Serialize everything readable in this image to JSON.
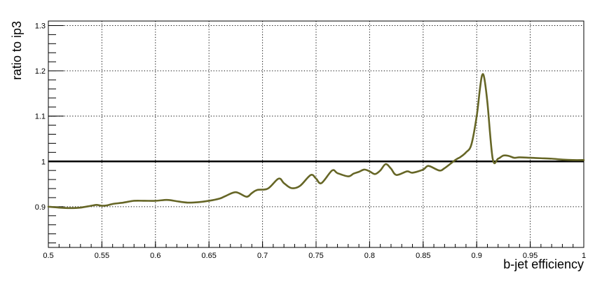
{
  "chart_data": {
    "type": "line",
    "xlabel": "b-jet efficiency",
    "ylabel": "ratio to ip3",
    "xlim": [
      0.5,
      1.0
    ],
    "ylim": [
      0.81,
      1.31
    ],
    "xticks": [
      0.5,
      0.55,
      0.6,
      0.65,
      0.7,
      0.75,
      0.8,
      0.85,
      0.9,
      0.95,
      1.0
    ],
    "xtick_labels": [
      "0.5",
      "0.55",
      "0.6",
      "0.65",
      "0.7",
      "0.75",
      "0.8",
      "0.85",
      "0.9",
      "0.95",
      "1"
    ],
    "yticks": [
      0.9,
      1.0,
      1.1,
      1.2,
      1.3
    ],
    "ytick_labels": [
      "0.9",
      "1",
      "1.1",
      "1.2",
      "1.3"
    ],
    "grid": true,
    "reference_line": 1.0,
    "line_color": "#666626",
    "series": [
      {
        "x": [
          0.5,
          0.51,
          0.52,
          0.53,
          0.54,
          0.545,
          0.55,
          0.555,
          0.56,
          0.57,
          0.58,
          0.59,
          0.6,
          0.61,
          0.615,
          0.62,
          0.63,
          0.64,
          0.65,
          0.66,
          0.665,
          0.675,
          0.685,
          0.69,
          0.695,
          0.705,
          0.715,
          0.72,
          0.727,
          0.735,
          0.745,
          0.75,
          0.755,
          0.765,
          0.77,
          0.78,
          0.785,
          0.79,
          0.795,
          0.8,
          0.805,
          0.81,
          0.815,
          0.82,
          0.825,
          0.835,
          0.84,
          0.85,
          0.855,
          0.865,
          0.87,
          0.88,
          0.885,
          0.89,
          0.895,
          0.9,
          0.903,
          0.905,
          0.907,
          0.91,
          0.915,
          0.92,
          0.925,
          0.93,
          0.935,
          0.94,
          0.95,
          0.96,
          0.97,
          0.98,
          0.99,
          1.0
        ],
        "y": [
          0.9,
          0.898,
          0.897,
          0.898,
          0.902,
          0.904,
          0.902,
          0.903,
          0.906,
          0.909,
          0.913,
          0.913,
          0.913,
          0.915,
          0.914,
          0.912,
          0.909,
          0.91,
          0.913,
          0.918,
          0.923,
          0.932,
          0.922,
          0.93,
          0.937,
          0.94,
          0.962,
          0.952,
          0.941,
          0.946,
          0.97,
          0.962,
          0.952,
          0.98,
          0.974,
          0.967,
          0.973,
          0.977,
          0.982,
          0.978,
          0.972,
          0.98,
          0.994,
          0.984,
          0.97,
          0.978,
          0.975,
          0.982,
          0.99,
          0.98,
          0.985,
          1.003,
          1.01,
          1.02,
          1.037,
          1.1,
          1.16,
          1.19,
          1.185,
          1.13,
          1.005,
          1.006,
          1.013,
          1.012,
          1.008,
          1.009,
          1.008,
          1.007,
          1.006,
          1.004,
          1.003,
          1.003
        ]
      }
    ]
  }
}
